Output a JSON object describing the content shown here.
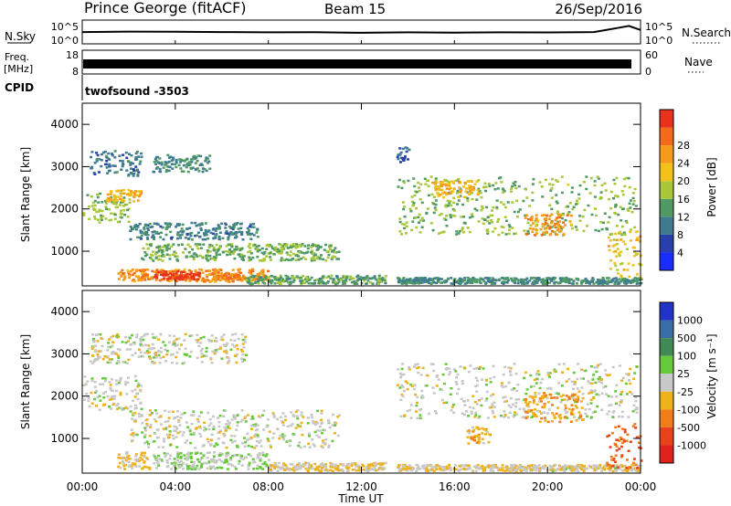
{
  "header": {
    "station": "Prince George (fitACF)",
    "beam": "Beam 15",
    "date": "26/Sep/2016"
  },
  "strips": {
    "nsky_label": "N.Sky",
    "nsky_ticks": [
      "10^5",
      "10^0"
    ],
    "nsearch_label": "N.Search",
    "nsearch_ticks": [
      "10^5",
      "10^0"
    ],
    "freq_label": [
      "Freq.",
      "[MHz]"
    ],
    "freq_ticks": [
      "18",
      "8"
    ],
    "nave_label": "Nave",
    "nave_ticks": [
      "60",
      "0"
    ],
    "cpid_label": "CPID",
    "cpid_value": "twofsound -3503"
  },
  "axes": {
    "ylabel": "Slant Range [km]",
    "xlabel": "Time UT",
    "y_ticks": [
      "1000",
      "2000",
      "3000",
      "4000"
    ],
    "x_ticks": [
      "00:00",
      "04:00",
      "08:00",
      "12:00",
      "16:00",
      "20:00",
      "00:00"
    ]
  },
  "colorbars": {
    "power": {
      "label": "Power [dB]",
      "ticks": [
        "4",
        "8",
        "12",
        "16",
        "20",
        "24",
        "28"
      ],
      "colors": [
        "#1a2dff",
        "#2a3fae",
        "#3e7a90",
        "#4f9a64",
        "#a8c83a",
        "#f2c21a",
        "#f59a1c",
        "#f36a1a",
        "#e8321c"
      ]
    },
    "velocity": {
      "label": "Velocity [m s⁻¹]",
      "ticks": [
        "1000",
        "500",
        "100",
        "25",
        "-25",
        "-100",
        "-500",
        "-1000"
      ],
      "colors": [
        "#2233c8",
        "#3a6ea8",
        "#3f8a55",
        "#66c93a",
        "#c8c8c8",
        "#f0b21a",
        "#ef7d1a",
        "#e8421a",
        "#e0221c"
      ]
    }
  },
  "chart_data": [
    {
      "type": "line",
      "title": "N.Sky / N.Search",
      "x_range_hours": [
        0,
        24
      ],
      "y_scale": "log",
      "series": [
        {
          "name": "N.Sky",
          "x": [
            0,
            2,
            4,
            6,
            8,
            10,
            12,
            14,
            16,
            18,
            20,
            22,
            23,
            23.5,
            24
          ],
          "y": [
            300,
            400,
            350,
            300,
            250,
            280,
            200,
            250,
            220,
            260,
            240,
            300,
            3000,
            10000,
            1000
          ]
        }
      ]
    },
    {
      "type": "area",
      "title": "Freq. [MHz] / Nave",
      "x_range_hours": [
        0,
        24
      ],
      "freq_range": [
        8,
        18
      ],
      "nave_range": [
        0,
        60
      ],
      "series": [
        {
          "name": "Freq. [MHz]",
          "values_constant": 11.5
        }
      ]
    },
    {
      "type": "heatmap",
      "title": "Power [dB]",
      "x_range_hours": [
        0,
        24
      ],
      "ylim": [
        180,
        4500
      ],
      "color_range": [
        0,
        30
      ],
      "regions": [
        {
          "t": [
            0,
            2.0
          ],
          "r": [
            1700,
            2400
          ],
          "v": 14
        },
        {
          "t": [
            1.0,
            2.5
          ],
          "r": [
            2200,
            2500
          ],
          "v": 20
        },
        {
          "t": [
            0.3,
            2.5
          ],
          "r": [
            2800,
            3400
          ],
          "v": 8
        },
        {
          "t": [
            3.0,
            5.5
          ],
          "r": [
            2900,
            3300
          ],
          "v": 10
        },
        {
          "t": [
            2.0,
            7.5
          ],
          "r": [
            1300,
            1700
          ],
          "v": 9
        },
        {
          "t": [
            2.5,
            11.0
          ],
          "r": [
            800,
            1200
          ],
          "v": 13
        },
        {
          "t": [
            1.5,
            8.0
          ],
          "r": [
            300,
            600
          ],
          "v": 22
        },
        {
          "t": [
            3.0,
            5.0
          ],
          "r": [
            350,
            550
          ],
          "v": 28
        },
        {
          "t": [
            5.5,
            7.0
          ],
          "r": [
            350,
            520
          ],
          "v": 24
        },
        {
          "t": [
            7.0,
            13.0
          ],
          "r": [
            250,
            450
          ],
          "v": 12
        },
        {
          "t": [
            13.5,
            24.0
          ],
          "r": [
            250,
            400
          ],
          "v": 10
        },
        {
          "t": [
            13.5,
            23.8
          ],
          "r": [
            1400,
            2800
          ],
          "v": 14
        },
        {
          "t": [
            15.0,
            17.0
          ],
          "r": [
            2300,
            2700
          ],
          "v": 20
        },
        {
          "t": [
            19.0,
            21.0
          ],
          "r": [
            1400,
            1900
          ],
          "v": 22
        },
        {
          "t": [
            22.5,
            24.0
          ],
          "r": [
            400,
            1500
          ],
          "v": 18
        },
        {
          "t": [
            13.5,
            14.0
          ],
          "r": [
            3100,
            3500
          ],
          "v": 6
        }
      ]
    },
    {
      "type": "heatmap",
      "title": "Velocity [m s-1]",
      "x_range_hours": [
        0,
        24
      ],
      "ylim": [
        180,
        4500
      ],
      "color_range": [
        -1000,
        1000
      ],
      "regions": [
        {
          "t": [
            0,
            2.5
          ],
          "r": [
            1700,
            2500
          ],
          "v": 0
        },
        {
          "t": [
            0.3,
            7.0
          ],
          "r": [
            2800,
            3500
          ],
          "v": 0
        },
        {
          "t": [
            2.0,
            11.0
          ],
          "r": [
            800,
            1700
          ],
          "v": 0
        },
        {
          "t": [
            1.5,
            3.0
          ],
          "r": [
            300,
            700
          ],
          "v": -150
        },
        {
          "t": [
            3.0,
            8.0
          ],
          "r": [
            300,
            700
          ],
          "v": 80
        },
        {
          "t": [
            8.0,
            13.0
          ],
          "r": [
            250,
            450
          ],
          "v": -80
        },
        {
          "t": [
            13.5,
            24.0
          ],
          "r": [
            250,
            400
          ],
          "v": -60
        },
        {
          "t": [
            13.5,
            23.8
          ],
          "r": [
            1500,
            2800
          ],
          "v": 0
        },
        {
          "t": [
            19.0,
            21.5
          ],
          "r": [
            1400,
            2100
          ],
          "v": -300
        },
        {
          "t": [
            16.5,
            17.5
          ],
          "r": [
            900,
            1300
          ],
          "v": -250
        },
        {
          "t": [
            22.5,
            24.0
          ],
          "r": [
            300,
            1400
          ],
          "v": -600
        }
      ]
    }
  ]
}
